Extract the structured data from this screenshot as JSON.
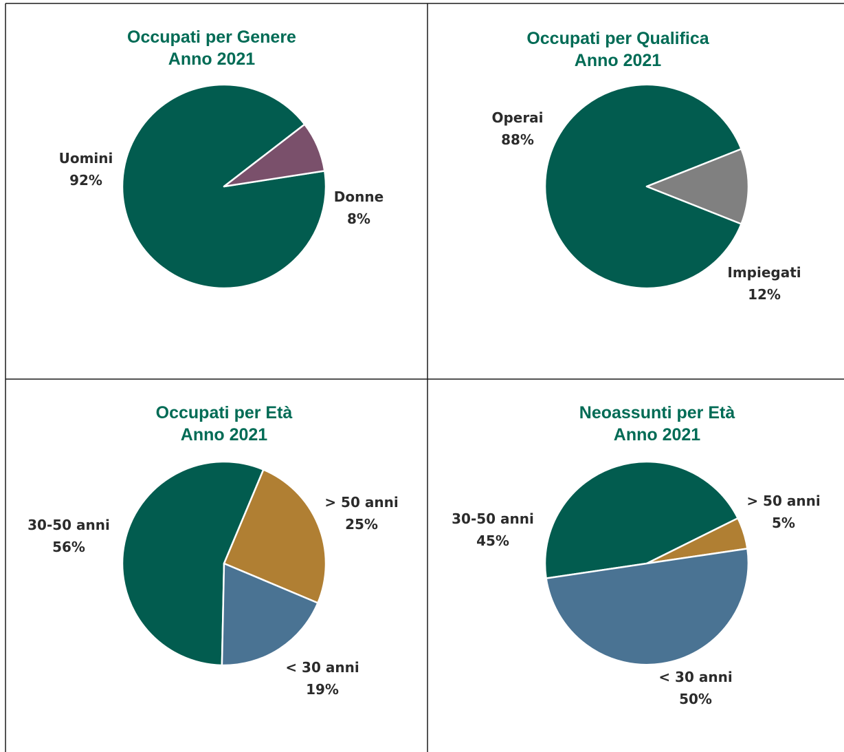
{
  "colors": {
    "green": "#025c4f",
    "mauve": "#7a506b",
    "gray": "#808080",
    "gold": "#b07f33",
    "blue": "#4a7393",
    "title": "#006b55",
    "grid": "#1a1a1a"
  },
  "chart_data": [
    {
      "type": "pie",
      "title": "Occupati per Genere",
      "subtitle": "Anno 2021",
      "slices": [
        {
          "name": "Uomini",
          "value": 92,
          "label": "92%",
          "color": "#025c4f"
        },
        {
          "name": "Donne",
          "value": 8,
          "label": "8%",
          "color": "#7a506b"
        }
      ]
    },
    {
      "type": "pie",
      "title": "Occupati per Qualifica",
      "subtitle": "Anno 2021",
      "slices": [
        {
          "name": "Operai",
          "value": 88,
          "label": "88%",
          "color": "#025c4f"
        },
        {
          "name": "Impiegati",
          "value": 12,
          "label": "12%",
          "color": "#808080"
        }
      ]
    },
    {
      "type": "pie",
      "title": "Occupati per Età",
      "subtitle": "Anno 2021",
      "slices": [
        {
          "name": "30-50 anni",
          "value": 56,
          "label": "56%",
          "color": "#025c4f"
        },
        {
          "name": "> 50 anni",
          "value": 25,
          "label": "25%",
          "color": "#b07f33"
        },
        {
          "name": "< 30 anni",
          "value": 19,
          "label": "19%",
          "color": "#4a7393"
        }
      ]
    },
    {
      "type": "pie",
      "title": "Neoassunti per Età",
      "subtitle": "Anno 2021",
      "slices": [
        {
          "name": "30-50 anni",
          "value": 45,
          "label": "45%",
          "color": "#025c4f"
        },
        {
          "name": "> 50 anni",
          "value": 5,
          "label": "5%",
          "color": "#b07f33"
        },
        {
          "name": "< 30 anni",
          "value": 50,
          "label": "50%",
          "color": "#4a7393"
        }
      ]
    }
  ]
}
